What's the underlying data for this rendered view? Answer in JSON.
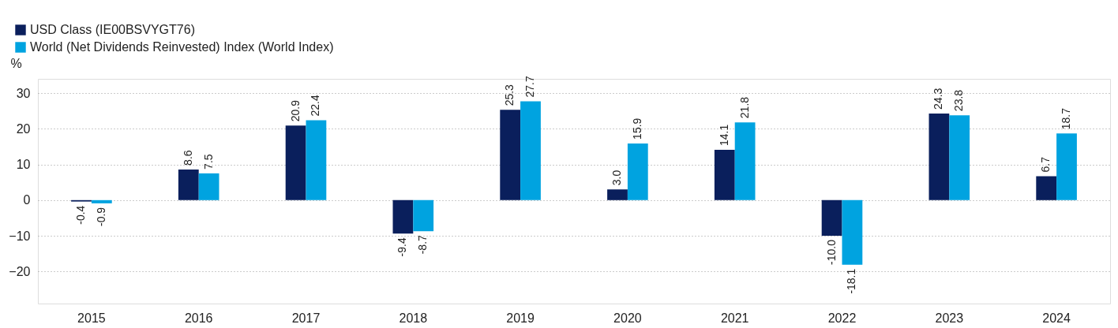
{
  "chart_data": {
    "type": "bar",
    "ylabel": "%",
    "categories": [
      "2015",
      "2016",
      "2017",
      "2018",
      "2019",
      "2020",
      "2021",
      "2022",
      "2023",
      "2024"
    ],
    "series": [
      {
        "name": "USD Class (IE00BSVYGT76)",
        "color": "#0a1f5c",
        "values": [
          -0.4,
          8.6,
          20.9,
          -9.4,
          25.3,
          3.0,
          14.1,
          -10.0,
          24.3,
          6.7
        ],
        "value_labels": [
          "-0.4",
          "8.6",
          "20.9",
          "-9.4",
          "25.3",
          "3.0",
          "14.1",
          "-10.0",
          "24.3",
          "6.7"
        ]
      },
      {
        "name": "World (Net Dividends Reinvested) Index (World Index)",
        "color": "#00a3e0",
        "values": [
          -0.9,
          7.5,
          22.4,
          -8.7,
          27.7,
          15.9,
          21.8,
          -18.1,
          23.8,
          18.7
        ],
        "value_labels": [
          "-0.9",
          "7.5",
          "22.4",
          "-8.7",
          "27.7",
          "15.9",
          "21.8",
          "-18.1",
          "23.8",
          "18.7"
        ]
      }
    ],
    "ylim": [
      -29,
      34
    ],
    "yticks": [
      -20,
      -10,
      0,
      10,
      20,
      30
    ],
    "grid": "y",
    "legend": "top left"
  }
}
